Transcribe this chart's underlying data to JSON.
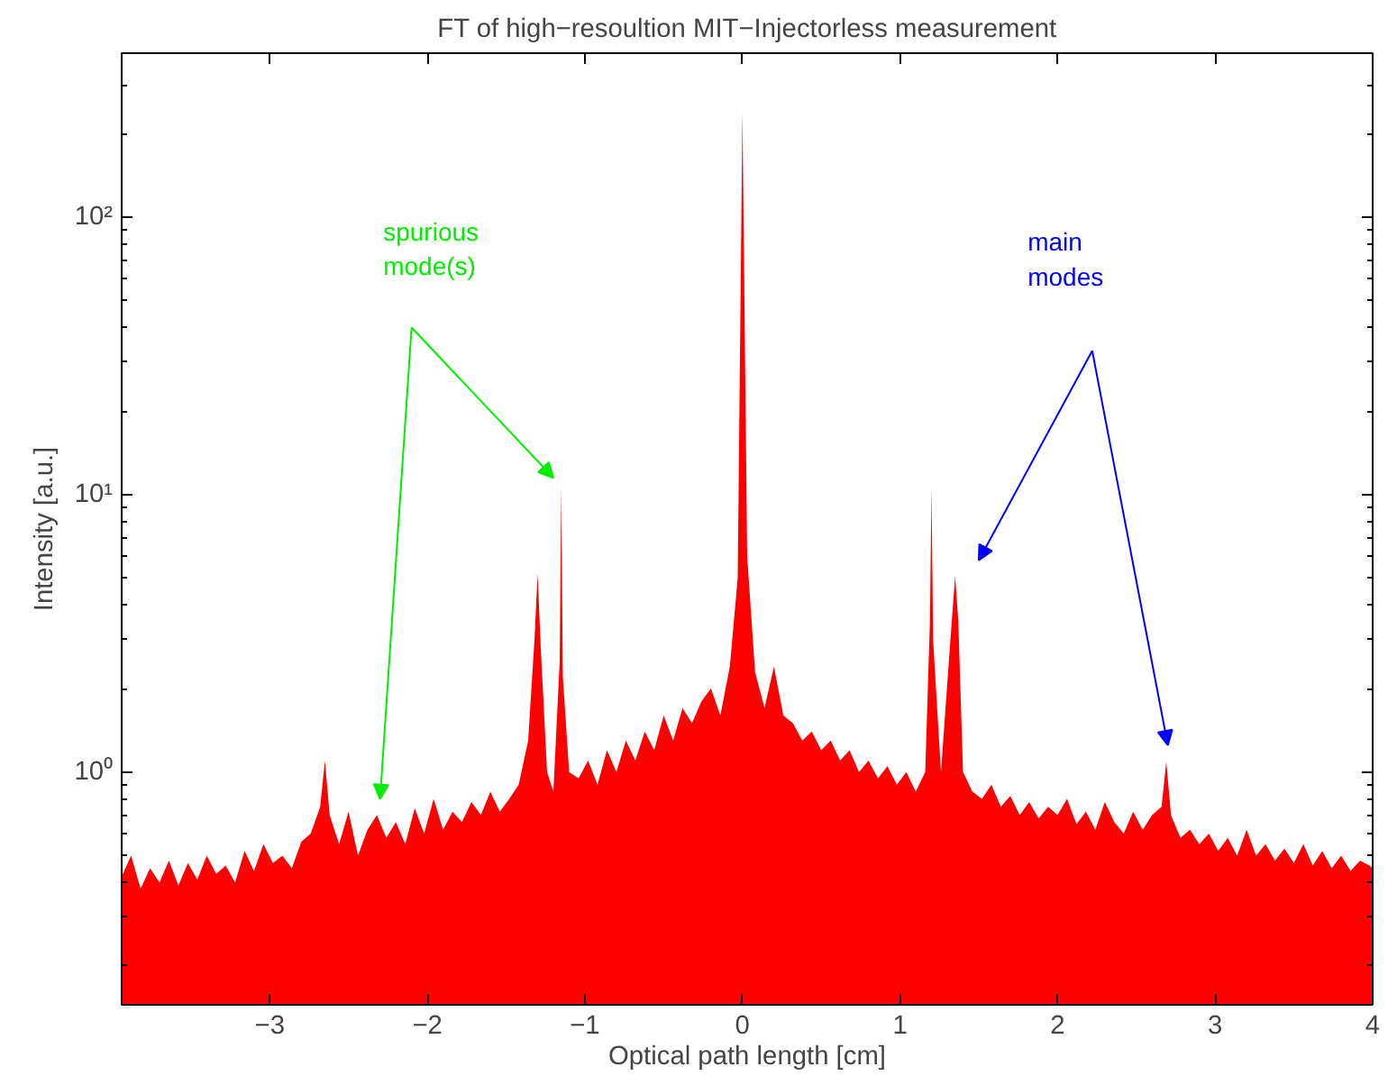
{
  "chart_data": {
    "type": "area",
    "title": "FT of high−resoultion MIT−Injectorless measurement",
    "xlabel": "Optical path length [cm]",
    "ylabel": "Intensity [a.u.]",
    "log": "y",
    "grid": false,
    "xlim": [
      -3.94,
      4
    ],
    "xticks": [
      {
        "value": -3,
        "label": "−3"
      },
      {
        "value": -2,
        "label": "−2"
      },
      {
        "value": -1,
        "label": "−1"
      },
      0,
      1,
      2,
      3,
      4
    ],
    "ylim": [
      0.145,
      390
    ],
    "yticks": [
      {
        "value": 1,
        "label": "10⁰"
      },
      {
        "value": 10,
        "label": "10¹"
      },
      {
        "value": 100,
        "label": "10²"
      }
    ],
    "annotations": [
      "spurious\nmode(s)",
      "main\nmodes"
    ],
    "series": [
      {
        "color": "#ff0000",
        "x": [
          -3.94,
          -3.88,
          -3.82,
          -3.76,
          -3.7,
          -3.64,
          -3.58,
          -3.52,
          -3.46,
          -3.4,
          -3.34,
          -3.28,
          -3.22,
          -3.16,
          -3.1,
          -3.04,
          -2.98,
          -2.92,
          -2.86,
          -2.8,
          -2.74,
          -2.68,
          -2.65,
          -2.62,
          -2.56,
          -2.5,
          -2.44,
          -2.38,
          -2.32,
          -2.26,
          -2.2,
          -2.14,
          -2.08,
          -2.02,
          -1.96,
          -1.9,
          -1.84,
          -1.78,
          -1.72,
          -1.66,
          -1.6,
          -1.54,
          -1.48,
          -1.42,
          -1.36,
          -1.32,
          -1.3,
          -1.28,
          -1.24,
          -1.2,
          -1.16,
          -1.15,
          -1.14,
          -1.1,
          -1.04,
          -0.98,
          -0.92,
          -0.86,
          -0.8,
          -0.74,
          -0.68,
          -0.62,
          -0.56,
          -0.5,
          -0.44,
          -0.38,
          -0.32,
          -0.26,
          -0.2,
          -0.14,
          -0.08,
          -0.03,
          0,
          0.03,
          0.08,
          0.14,
          0.2,
          0.26,
          0.32,
          0.38,
          0.44,
          0.5,
          0.56,
          0.62,
          0.68,
          0.74,
          0.8,
          0.86,
          0.92,
          0.98,
          1.04,
          1.1,
          1.16,
          1.19,
          1.2,
          1.21,
          1.26,
          1.32,
          1.35,
          1.37,
          1.4,
          1.46,
          1.52,
          1.58,
          1.64,
          1.7,
          1.76,
          1.82,
          1.88,
          1.94,
          2.0,
          2.06,
          2.12,
          2.18,
          2.24,
          2.3,
          2.36,
          2.42,
          2.48,
          2.54,
          2.6,
          2.66,
          2.69,
          2.72,
          2.78,
          2.84,
          2.9,
          2.96,
          3.02,
          3.08,
          3.14,
          3.2,
          3.26,
          3.32,
          3.38,
          3.44,
          3.5,
          3.56,
          3.62,
          3.68,
          3.74,
          3.8,
          3.86,
          3.92,
          3.98,
          4.0
        ],
        "values": [
          0.42,
          0.5,
          0.38,
          0.45,
          0.4,
          0.48,
          0.39,
          0.47,
          0.41,
          0.5,
          0.43,
          0.46,
          0.4,
          0.52,
          0.44,
          0.55,
          0.47,
          0.5,
          0.45,
          0.56,
          0.6,
          0.75,
          1.1,
          0.7,
          0.55,
          0.72,
          0.5,
          0.62,
          0.7,
          0.58,
          0.66,
          0.55,
          0.74,
          0.6,
          0.8,
          0.62,
          0.72,
          0.66,
          0.78,
          0.7,
          0.85,
          0.72,
          0.8,
          0.9,
          1.3,
          3.0,
          5.2,
          2.8,
          1.0,
          0.85,
          2.5,
          10.5,
          2.2,
          1.0,
          0.95,
          1.1,
          0.9,
          1.2,
          1.0,
          1.3,
          1.1,
          1.4,
          1.2,
          1.6,
          1.3,
          1.7,
          1.5,
          1.8,
          2.0,
          1.6,
          2.4,
          5.0,
          240,
          6.0,
          2.3,
          1.7,
          2.4,
          1.6,
          1.5,
          1.3,
          1.4,
          1.2,
          1.3,
          1.1,
          1.2,
          1.0,
          1.1,
          0.95,
          1.05,
          0.9,
          1.0,
          0.85,
          1.0,
          3.5,
          10.5,
          3.0,
          1.0,
          3.0,
          5.1,
          3.5,
          1.0,
          0.85,
          0.8,
          0.9,
          0.75,
          0.82,
          0.7,
          0.78,
          0.68,
          0.75,
          0.7,
          0.8,
          0.65,
          0.72,
          0.62,
          0.78,
          0.66,
          0.6,
          0.72,
          0.62,
          0.7,
          0.75,
          1.09,
          0.7,
          0.58,
          0.62,
          0.55,
          0.6,
          0.52,
          0.58,
          0.5,
          0.62,
          0.5,
          0.55,
          0.48,
          0.53,
          0.47,
          0.55,
          0.46,
          0.52,
          0.45,
          0.5,
          0.44,
          0.48,
          0.46,
          0.45
        ]
      }
    ]
  }
}
